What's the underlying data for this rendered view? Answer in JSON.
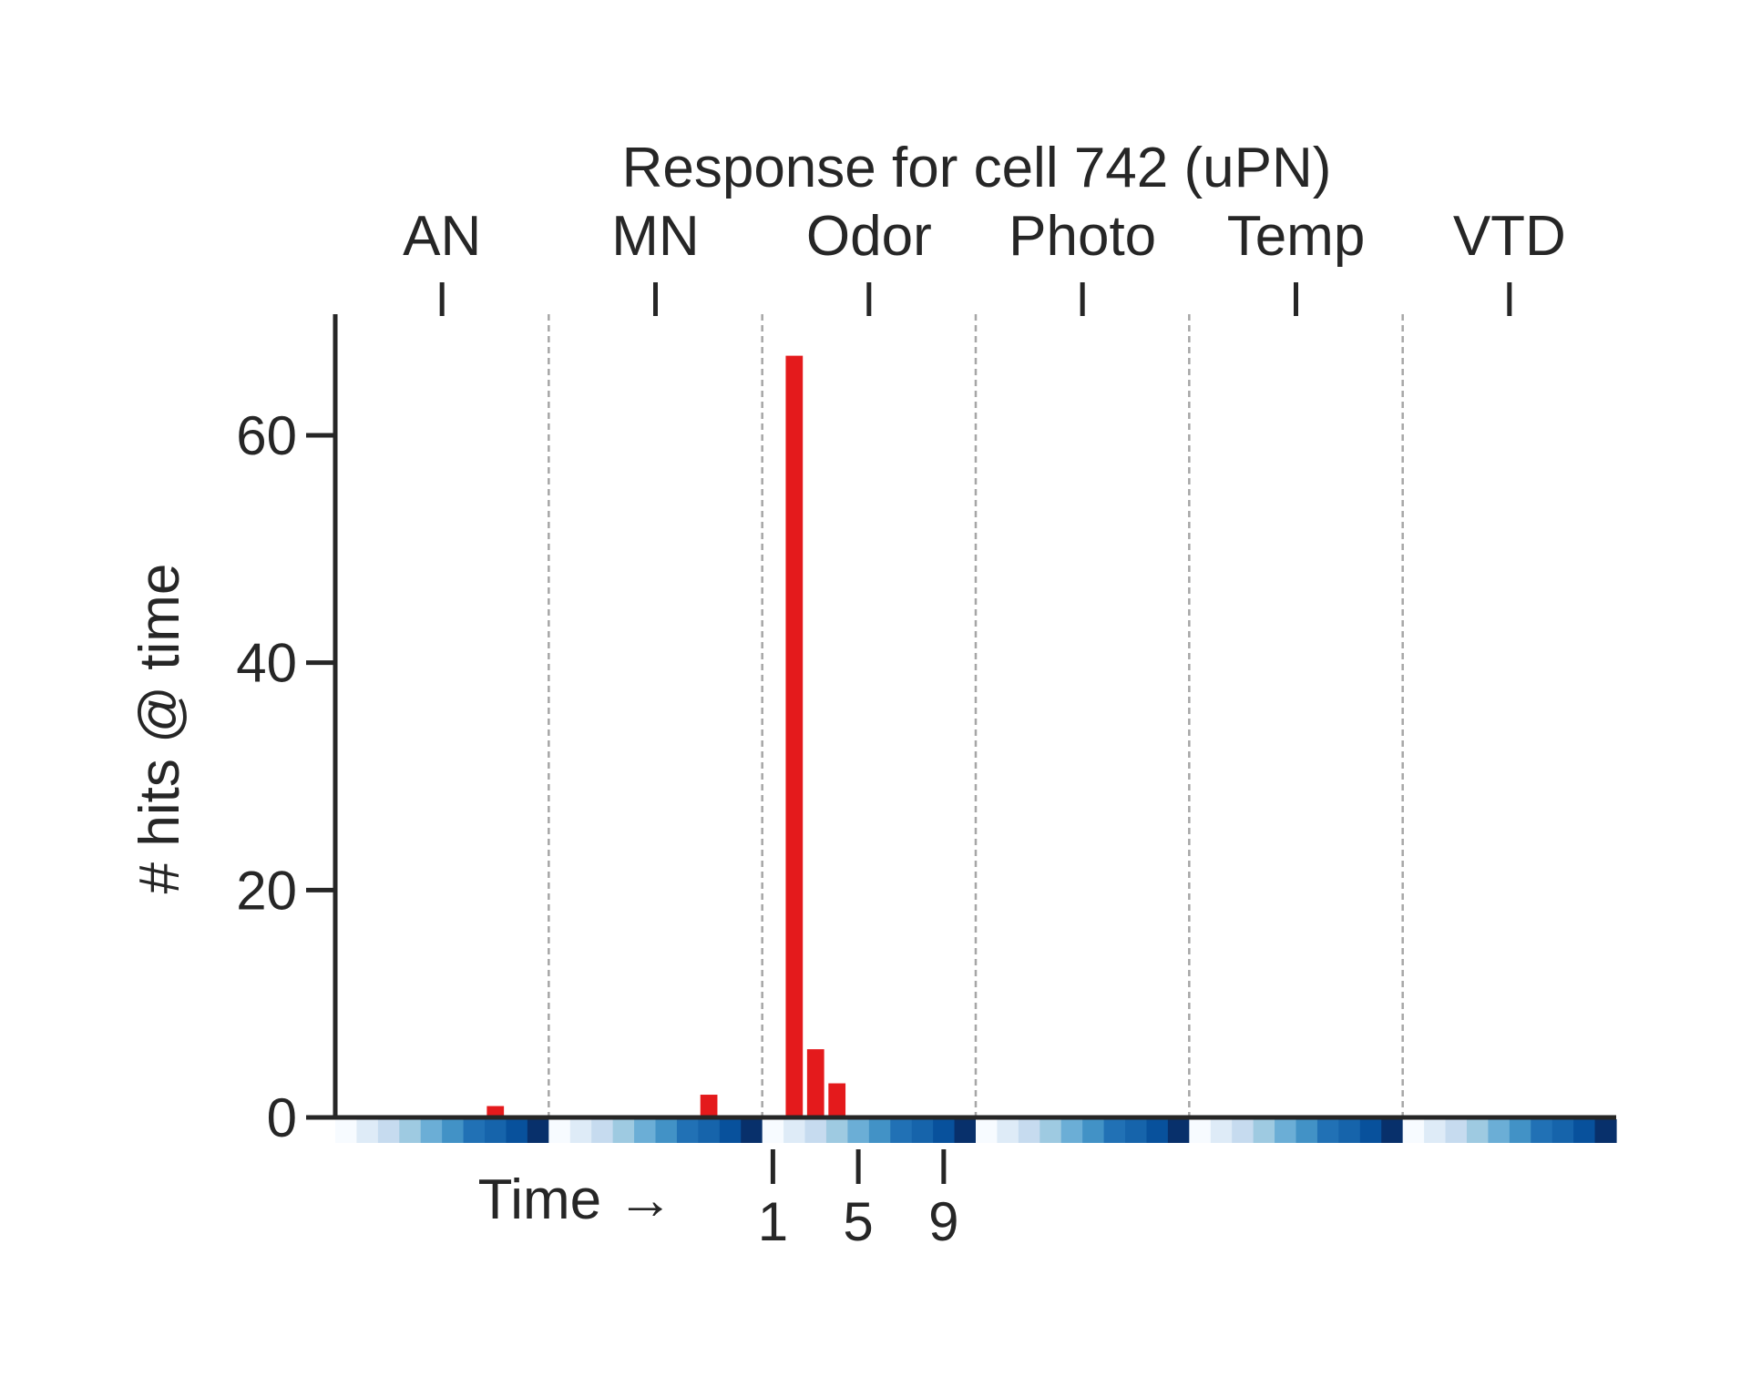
{
  "chart_data": {
    "type": "bar",
    "title": "Response for cell 742 (uPN)",
    "ylabel": "# hits @ time",
    "xlabel": "Time →",
    "ylim": [
      0,
      70
    ],
    "yticks": [
      0,
      20,
      40,
      60
    ],
    "groups": [
      "AN",
      "MN",
      "Odor",
      "Photo",
      "Temp",
      "VTD"
    ],
    "bins_per_group": 10,
    "bottom_ticks": [
      {
        "group": "Odor",
        "bin": 1,
        "label": "1"
      },
      {
        "group": "Odor",
        "bin": 5,
        "label": "5"
      },
      {
        "group": "Odor",
        "bin": 9,
        "label": "9"
      }
    ],
    "series": [
      {
        "values": {
          "AN": [
            0,
            0,
            0,
            0,
            0,
            0,
            0,
            1,
            0,
            0
          ],
          "MN": [
            0,
            0,
            0,
            0,
            0,
            0,
            0,
            2,
            0,
            0
          ],
          "Odor": [
            0,
            67,
            6,
            3,
            0,
            0,
            0,
            0,
            0,
            0
          ],
          "Photo": [
            0,
            0,
            0,
            0,
            0,
            0,
            0,
            0,
            0,
            0
          ],
          "Temp": [
            0,
            0,
            0,
            0,
            0,
            0,
            0,
            0,
            0,
            0
          ],
          "VTD": [
            0,
            0,
            0,
            0,
            0,
            0,
            0,
            0,
            0,
            0
          ]
        }
      }
    ],
    "bar_color": "#e41a1c",
    "time_strip_colors": [
      "#f7fbff",
      "#deebf7",
      "#c6dbef",
      "#9ecae1",
      "#6baed6",
      "#4292c6",
      "#2171b5",
      "#1664ab",
      "#08519c",
      "#08306b"
    ],
    "grid": false,
    "group_separator": "dashed"
  }
}
